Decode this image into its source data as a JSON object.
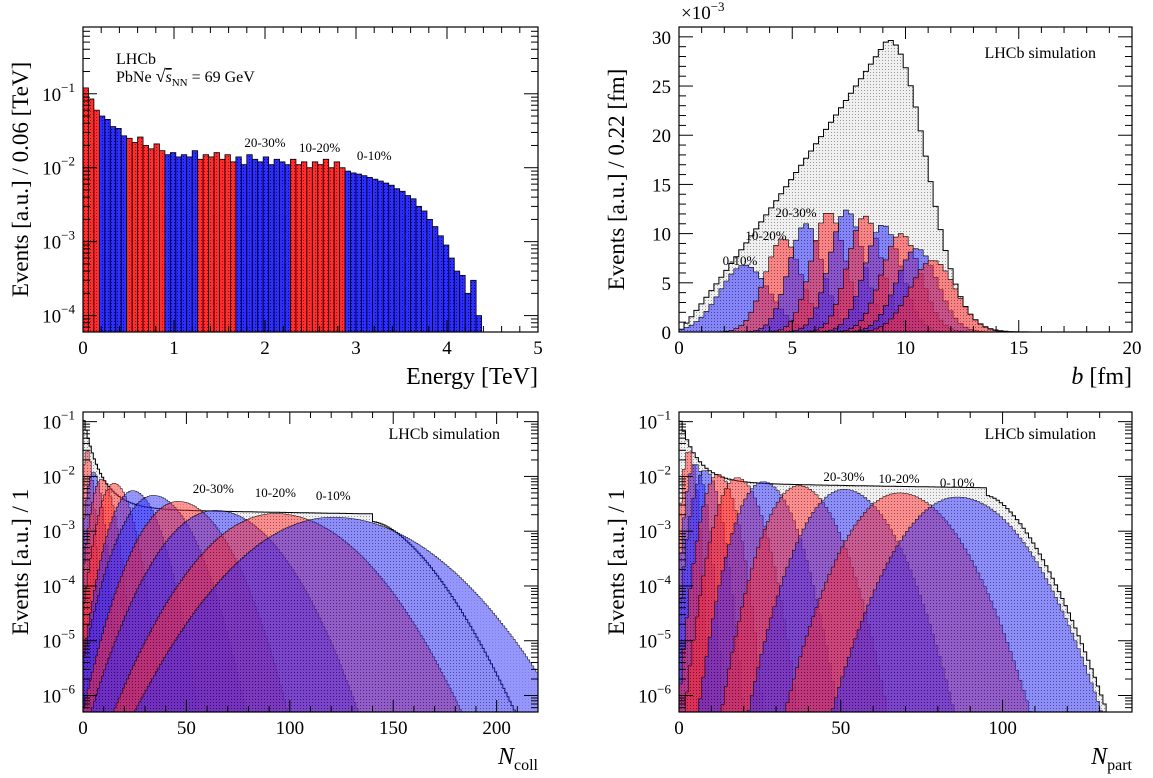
{
  "chart_data": [
    {
      "id": "energy",
      "type": "histogram",
      "x": {
        "label": "Energy [TeV]",
        "range": [
          0,
          5
        ],
        "ticks": [
          "0",
          "1",
          "2",
          "3",
          "4",
          "5"
        ],
        "scale": "linear"
      },
      "y": {
        "label": "Events [a.u.] / 0.06 [TeV]",
        "range": [
          6e-05,
          0.8
        ],
        "scale": "log",
        "ticks": [
          {
            "v": 0.1,
            "base": "10",
            "exp": "−1"
          },
          {
            "v": 0.01,
            "base": "10",
            "exp": "−2"
          },
          {
            "v": 0.001,
            "base": "10",
            "exp": "−3"
          },
          {
            "v": 0.0001,
            "base": "10",
            "exp": "−4"
          }
        ]
      },
      "annotations": {
        "experiment": "LHCb",
        "system_prefix": "PbNe",
        "sqrt": "√",
        "s": "s",
        "s_sub": "NN",
        "energy": "= 69 GeV"
      },
      "class_labels": [
        {
          "text": "20-30%",
          "x": 2.0
        },
        {
          "text": "10-20%",
          "x": 2.6
        },
        {
          "text": "0-10%",
          "x": 3.2
        }
      ],
      "bin_width": 0.06,
      "bins": [
        [
          0.0,
          0.12,
          "red"
        ],
        [
          0.06,
          0.085,
          "red"
        ],
        [
          0.12,
          0.06,
          "red"
        ],
        [
          0.18,
          0.05,
          "blue"
        ],
        [
          0.24,
          0.045,
          "blue"
        ],
        [
          0.3,
          0.036,
          "blue"
        ],
        [
          0.36,
          0.034,
          "blue"
        ],
        [
          0.42,
          0.027,
          "blue"
        ],
        [
          0.48,
          0.025,
          "red"
        ],
        [
          0.54,
          0.022,
          "red"
        ],
        [
          0.6,
          0.026,
          "red"
        ],
        [
          0.66,
          0.02,
          "red"
        ],
        [
          0.72,
          0.018,
          "red"
        ],
        [
          0.78,
          0.021,
          "red"
        ],
        [
          0.84,
          0.017,
          "red"
        ],
        [
          0.9,
          0.015,
          "blue"
        ],
        [
          0.96,
          0.016,
          "blue"
        ],
        [
          1.02,
          0.014,
          "blue"
        ],
        [
          1.08,
          0.015,
          "blue"
        ],
        [
          1.14,
          0.014,
          "blue"
        ],
        [
          1.2,
          0.017,
          "blue"
        ],
        [
          1.26,
          0.013,
          "red"
        ],
        [
          1.32,
          0.015,
          "red"
        ],
        [
          1.38,
          0.014,
          "red"
        ],
        [
          1.44,
          0.016,
          "red"
        ],
        [
          1.5,
          0.013,
          "red"
        ],
        [
          1.56,
          0.015,
          "red"
        ],
        [
          1.62,
          0.012,
          "red"
        ],
        [
          1.68,
          0.014,
          "blue"
        ],
        [
          1.74,
          0.011,
          "blue"
        ],
        [
          1.8,
          0.015,
          "blue"
        ],
        [
          1.86,
          0.013,
          "blue"
        ],
        [
          1.92,
          0.012,
          "blue"
        ],
        [
          1.98,
          0.014,
          "blue"
        ],
        [
          2.04,
          0.011,
          "blue"
        ],
        [
          2.1,
          0.013,
          "blue"
        ],
        [
          2.16,
          0.012,
          "blue"
        ],
        [
          2.22,
          0.011,
          "blue"
        ],
        [
          2.28,
          0.013,
          "red"
        ],
        [
          2.34,
          0.011,
          "red"
        ],
        [
          2.4,
          0.012,
          "red"
        ],
        [
          2.46,
          0.01,
          "red"
        ],
        [
          2.52,
          0.012,
          "red"
        ],
        [
          2.58,
          0.011,
          "red"
        ],
        [
          2.64,
          0.013,
          "red"
        ],
        [
          2.7,
          0.01,
          "red"
        ],
        [
          2.76,
          0.012,
          "red"
        ],
        [
          2.82,
          0.01,
          "red"
        ],
        [
          2.88,
          0.009,
          "blue"
        ],
        [
          2.94,
          0.0085,
          "blue"
        ],
        [
          3.0,
          0.0082,
          "blue"
        ],
        [
          3.06,
          0.0078,
          "blue"
        ],
        [
          3.12,
          0.0074,
          "blue"
        ],
        [
          3.18,
          0.007,
          "blue"
        ],
        [
          3.24,
          0.0066,
          "blue"
        ],
        [
          3.3,
          0.0062,
          "blue"
        ],
        [
          3.36,
          0.0058,
          "blue"
        ],
        [
          3.42,
          0.0052,
          "blue"
        ],
        [
          3.48,
          0.0048,
          "blue"
        ],
        [
          3.54,
          0.0042,
          "blue"
        ],
        [
          3.6,
          0.0038,
          "blue"
        ],
        [
          3.66,
          0.003,
          "blue"
        ],
        [
          3.72,
          0.0026,
          "blue"
        ],
        [
          3.78,
          0.002,
          "blue"
        ],
        [
          3.84,
          0.0016,
          "blue"
        ],
        [
          3.9,
          0.0012,
          "blue"
        ],
        [
          3.96,
          0.0009,
          "blue"
        ],
        [
          4.02,
          0.0006,
          "blue"
        ],
        [
          4.08,
          0.0004,
          "blue"
        ],
        [
          4.14,
          0.00035,
          "blue"
        ],
        [
          4.2,
          0.0002,
          "blue"
        ],
        [
          4.26,
          0.0003,
          "blue"
        ],
        [
          4.32,
          0.0001,
          "blue"
        ]
      ]
    },
    {
      "id": "impact",
      "type": "histogram",
      "x": {
        "label_italic": "b",
        "label_rest": " [fm]",
        "range": [
          0,
          20
        ],
        "ticks": [
          "0",
          "5",
          "10",
          "15",
          "20"
        ],
        "scale": "linear"
      },
      "y": {
        "label": "Events [a.u.] / 0.22 [fm]",
        "range": [
          0,
          31
        ],
        "scale": "linear",
        "multiplier": "×10",
        "multiplier_exp": "−3",
        "ticks": [
          "0",
          "5",
          "10",
          "15",
          "20",
          "25",
          "30"
        ]
      },
      "annotations": {
        "text": "LHCb simulation"
      },
      "class_labels": [
        {
          "text": "20-30%"
        },
        {
          "text": "10-20%"
        },
        {
          "text": "0-10%"
        }
      ],
      "total": {
        "center": 9.2,
        "peak": 29.7,
        "shape": "b-weighted"
      },
      "classes": [
        {
          "center": 2.9,
          "peak": 6.8,
          "sigma": 1.1,
          "color": "blue"
        },
        {
          "center": 4.6,
          "peak": 9.5,
          "sigma": 0.8,
          "color": "red"
        },
        {
          "center": 5.6,
          "peak": 11.0,
          "sigma": 0.75,
          "color": "blue"
        },
        {
          "center": 6.6,
          "peak": 12.2,
          "sigma": 0.75,
          "color": "red"
        },
        {
          "center": 7.4,
          "peak": 12.4,
          "sigma": 0.75,
          "color": "blue"
        },
        {
          "center": 8.2,
          "peak": 11.8,
          "sigma": 0.75,
          "color": "red"
        },
        {
          "center": 9.0,
          "peak": 10.9,
          "sigma": 0.8,
          "color": "blue"
        },
        {
          "center": 9.8,
          "peak": 10.0,
          "sigma": 0.85,
          "color": "red"
        },
        {
          "center": 10.5,
          "peak": 8.5,
          "sigma": 0.9,
          "color": "blue"
        },
        {
          "center": 11.2,
          "peak": 7.3,
          "sigma": 1.0,
          "color": "red"
        }
      ]
    },
    {
      "id": "ncoll",
      "type": "histogram",
      "x": {
        "label_italic": "N",
        "label_sub": "coll",
        "range": [
          0,
          220
        ],
        "ticks": [
          "0",
          "50",
          "100",
          "150",
          "200"
        ],
        "scale": "linear"
      },
      "y": {
        "label": "Events [a.u.] / 1",
        "range": [
          5e-07,
          0.15
        ],
        "scale": "log",
        "ticks": [
          {
            "v": 0.1,
            "base": "10",
            "exp": "−1"
          },
          {
            "v": 0.01,
            "base": "10",
            "exp": "−2"
          },
          {
            "v": 0.001,
            "base": "10",
            "exp": "−3"
          },
          {
            "v": 0.0001,
            "base": "10",
            "exp": "−4"
          },
          {
            "v": 1e-05,
            "base": "10",
            "exp": "−5"
          },
          {
            "v": 1e-06,
            "base": "10",
            "exp": "−6"
          }
        ]
      },
      "annotations": {
        "text": "LHCb simulation"
      },
      "class_labels": [
        {
          "text": "20-30%",
          "x": 63
        },
        {
          "text": "10-20%",
          "x": 93
        },
        {
          "text": "0-10%",
          "x": 121
        }
      ],
      "total_envelope": {
        "start": 0.1,
        "plateau_level": 0.002,
        "plateau_end": 140,
        "tail_end": 210
      },
      "classes": [
        {
          "center": 2,
          "peak": 0.03,
          "width": 1.5,
          "color": "red"
        },
        {
          "center": 5,
          "peak": 0.012,
          "width": 2.5,
          "color": "blue"
        },
        {
          "center": 9,
          "peak": 0.009,
          "width": 3.5,
          "color": "red"
        },
        {
          "center": 15,
          "peak": 0.0075,
          "width": 5,
          "color": "red"
        },
        {
          "center": 24,
          "peak": 0.0055,
          "width": 7,
          "color": "blue"
        },
        {
          "center": 34,
          "peak": 0.0045,
          "width": 10,
          "color": "blue"
        },
        {
          "center": 46,
          "peak": 0.0035,
          "width": 12,
          "color": "red"
        },
        {
          "center": 64,
          "peak": 0.0024,
          "width": 16,
          "color": "blue"
        },
        {
          "center": 93,
          "peak": 0.0021,
          "width": 21,
          "color": "red"
        },
        {
          "center": 121,
          "peak": 0.0018,
          "width": 26,
          "color": "blue"
        }
      ]
    },
    {
      "id": "npart",
      "type": "histogram",
      "x": {
        "label_italic": "N",
        "label_sub": "part",
        "range": [
          0,
          140
        ],
        "ticks": [
          "0",
          "50",
          "100"
        ],
        "scale": "linear"
      },
      "y": {
        "label": "Events [a.u.] / 1",
        "range": [
          5e-07,
          0.15
        ],
        "scale": "log",
        "ticks": [
          {
            "v": 0.1,
            "base": "10",
            "exp": "−1"
          },
          {
            "v": 0.01,
            "base": "10",
            "exp": "−2"
          },
          {
            "v": 0.001,
            "base": "10",
            "exp": "−3"
          },
          {
            "v": 0.0001,
            "base": "10",
            "exp": "−4"
          },
          {
            "v": 1e-05,
            "base": "10",
            "exp": "−5"
          },
          {
            "v": 1e-06,
            "base": "10",
            "exp": "−6"
          }
        ]
      },
      "annotations": {
        "text": "LHCb simulation"
      },
      "class_labels": [
        {
          "text": "20-30%",
          "x": 51
        },
        {
          "text": "10-20%",
          "x": 68
        },
        {
          "text": "0-10%",
          "x": 86
        }
      ],
      "total_envelope": {
        "start": 0.1,
        "plateau_level": 0.006,
        "plateau_end": 95,
        "tail_end": 130
      },
      "classes": [
        {
          "center": 3,
          "peak": 0.03,
          "width": 1.3,
          "color": "red"
        },
        {
          "center": 5,
          "peak": 0.017,
          "width": 1.8,
          "color": "blue"
        },
        {
          "center": 8,
          "peak": 0.013,
          "width": 2.5,
          "color": "blue"
        },
        {
          "center": 12,
          "peak": 0.011,
          "width": 3,
          "color": "red"
        },
        {
          "center": 18,
          "peak": 0.0095,
          "width": 4,
          "color": "red"
        },
        {
          "center": 26,
          "peak": 0.008,
          "width": 5,
          "color": "blue"
        },
        {
          "center": 37,
          "peak": 0.0068,
          "width": 6,
          "color": "red"
        },
        {
          "center": 51,
          "peak": 0.0058,
          "width": 7.5,
          "color": "blue"
        },
        {
          "center": 68,
          "peak": 0.005,
          "width": 9,
          "color": "red"
        },
        {
          "center": 86,
          "peak": 0.0042,
          "width": 10,
          "color": "blue"
        }
      ]
    }
  ],
  "colors": {
    "red": "#ff2a2a",
    "blue": "#2a2aff",
    "total": "#e6e6e6"
  }
}
